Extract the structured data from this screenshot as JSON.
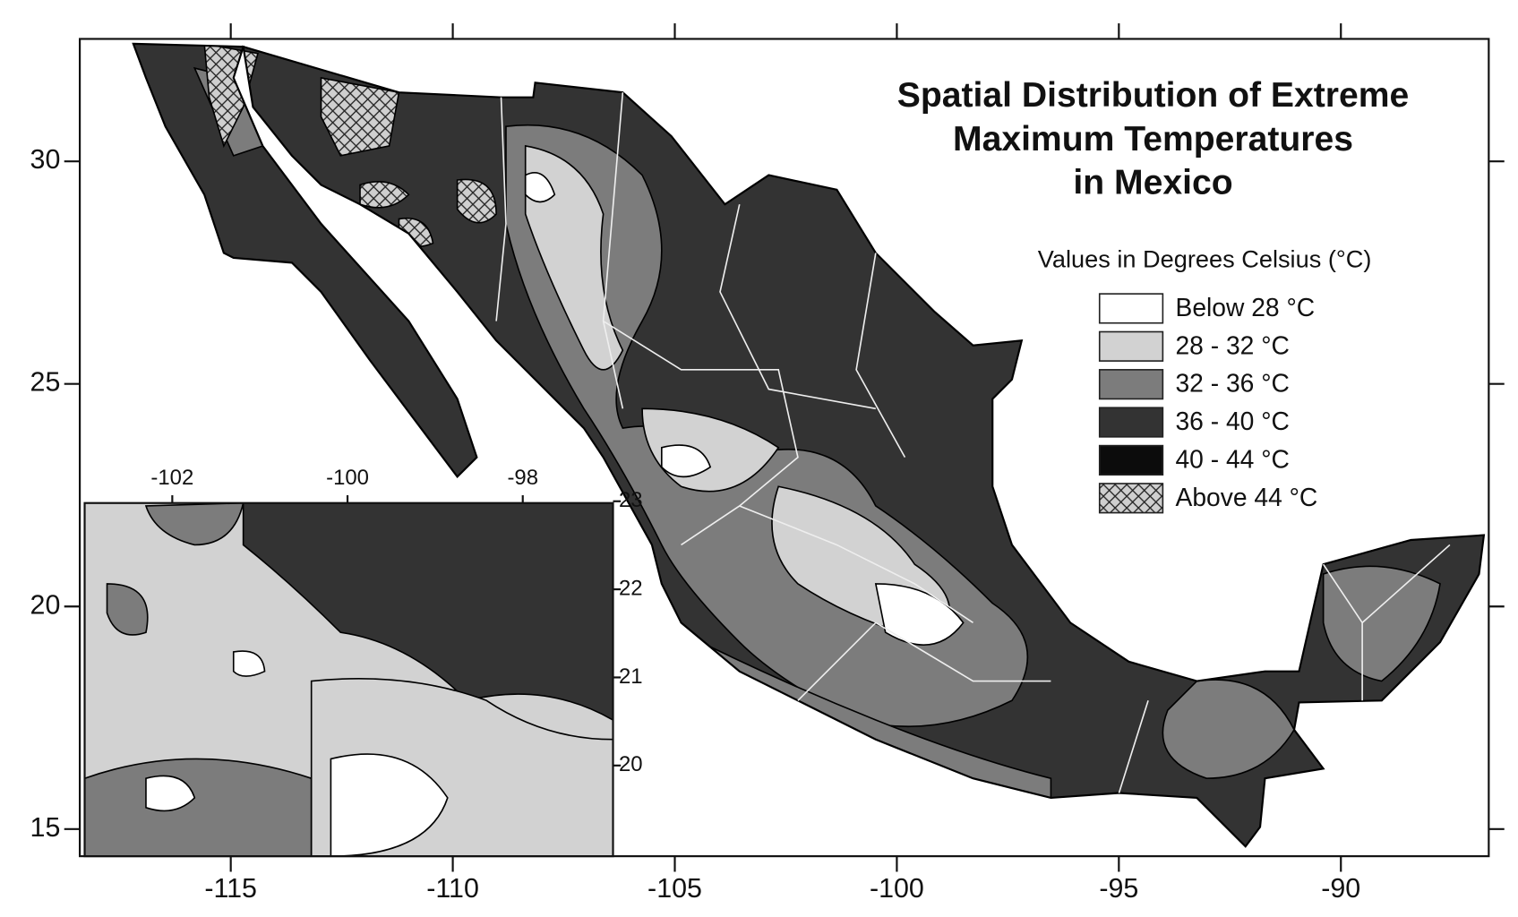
{
  "title": [
    "Spatial Distribution of Extreme",
    "Maximum Temperatures",
    "in Mexico"
  ],
  "legend": {
    "title": "Values in Degrees Celsius (°C)",
    "items": [
      {
        "label": "Below 28 °C",
        "color": "#ffffff"
      },
      {
        "label": "28 - 32 °C",
        "color": "#d2d2d2"
      },
      {
        "label": "32 - 36 °C",
        "color": "#7c7c7c"
      },
      {
        "label": "36 - 40 °C",
        "color": "#333333"
      },
      {
        "label": "40 - 44 °C",
        "color": "#0c0c0c"
      },
      {
        "label": "Above 44 °C",
        "color": "#cfcfcf",
        "hatch": true
      }
    ]
  },
  "main_map": {
    "xlim": [
      -118.4,
      -86.67
    ],
    "ylim": [
      14.39,
      32.75
    ],
    "xticks": [
      -115,
      -110,
      -105,
      -100,
      -95,
      -90
    ],
    "yticks": [
      15,
      20,
      25,
      30
    ]
  },
  "inset": {
    "xlim": [
      -103,
      -96.97
    ],
    "ylim": [
      18.97,
      22.98
    ],
    "xticks": [
      -102,
      -100,
      -98
    ],
    "yticks": [
      20,
      21,
      22,
      23
    ]
  }
}
